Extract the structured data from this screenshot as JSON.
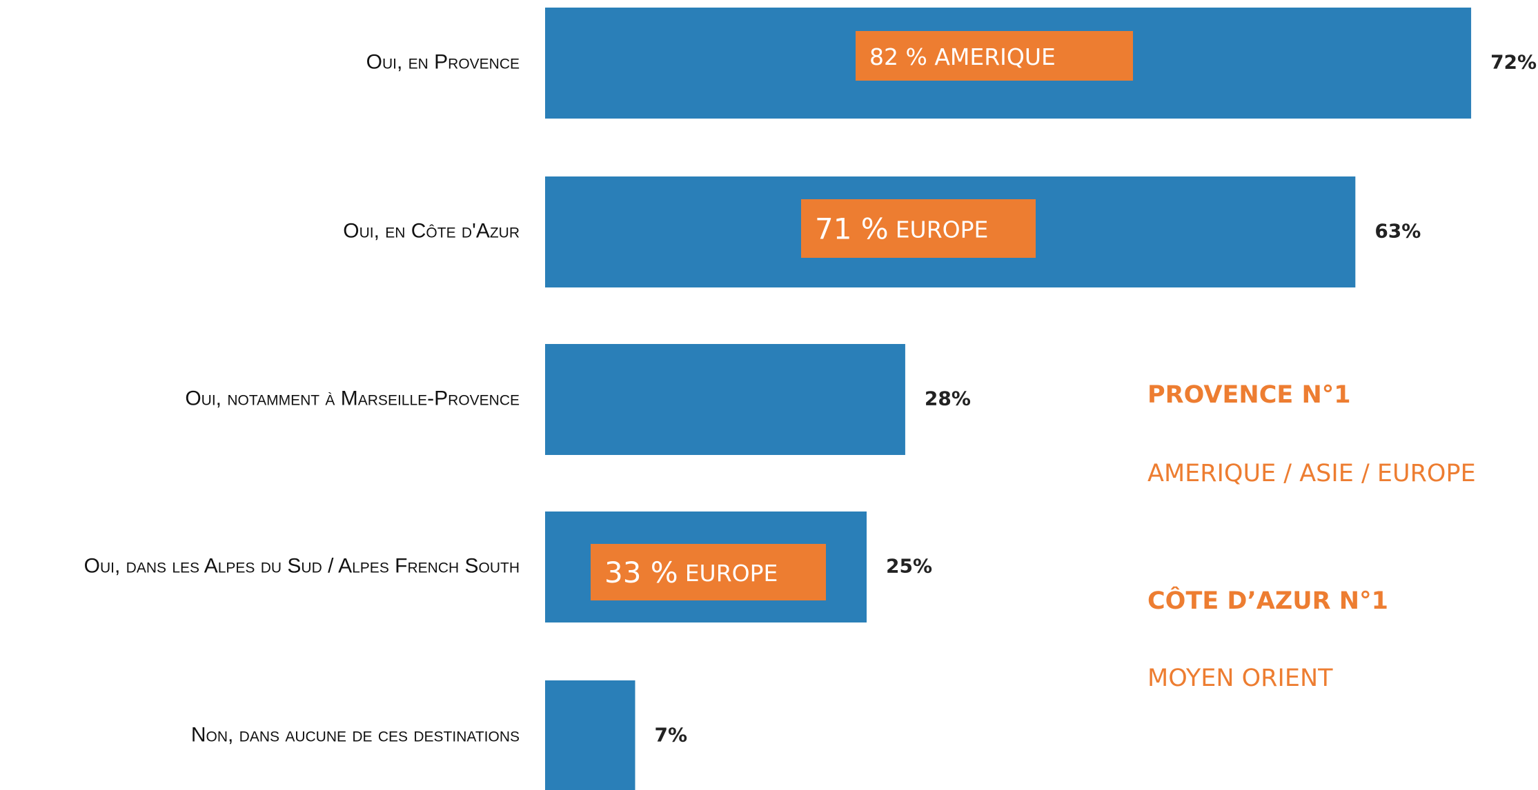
{
  "chart_data": {
    "type": "barh",
    "categories": [
      "Oui, en Provence",
      "Oui, en Côte d'Azur",
      "Oui, notamment à Marseille-Provence",
      "Oui, dans les Alpes du Sud / Alpes French South",
      "Non, dans aucune de ces destinations"
    ],
    "values": [
      72,
      63,
      28,
      25,
      7
    ],
    "value_labels": [
      "72%",
      "63%",
      "28%",
      "25%",
      "7%"
    ],
    "color": "#2a7fb8",
    "xlim": [
      0,
      100
    ],
    "annotations": [
      [
        "82 % AMERIQUE"
      ],
      [
        "71 %",
        "EUROPE"
      ],
      [
        "33 %",
        "EUROPE"
      ]
    ],
    "annotation_color": "#ed7d31",
    "notes": [
      "PROVENCE N°1",
      "AMERIQUE / ASIE / EUROPE",
      "CÔTE D’AZUR N°1",
      "MOYEN ORIENT"
    ]
  }
}
